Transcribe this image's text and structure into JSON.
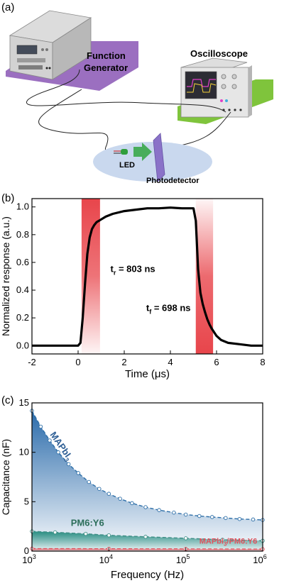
{
  "panel_a": {
    "label": "(a)",
    "function_generator_label_1": "Function",
    "function_generator_label_2": "Generator",
    "oscilloscope_label": "Oscilloscope",
    "led_label": "LED",
    "photodetector_label": "Photodetector",
    "colors": {
      "fg_platform": "#9b6fc0",
      "osc_platform": "#7fc43c",
      "table": "#c9d8ee",
      "detector": "#8a72c8",
      "arrow": "#3aa84a",
      "led": "#2f9e3c"
    }
  },
  "chart_data": [
    {
      "id": "b",
      "panel_label": "(b)",
      "type": "line",
      "xlabel": "Time (μs)",
      "ylabel": "Normalized response (a.u.)",
      "xlim": [
        -2,
        8
      ],
      "ylim": [
        -0.06,
        1.06
      ],
      "x_ticks": [
        -2,
        0,
        2,
        4,
        6,
        8
      ],
      "y_ticks": [
        0.0,
        0.2,
        0.4,
        0.6,
        0.8,
        1.0
      ],
      "y_tick_labels": [
        "0.0",
        "0.2",
        "0.4",
        "0.6",
        "0.8",
        "1.0"
      ],
      "grid": false,
      "series": [
        {
          "color": "#000000",
          "x": [
            -2,
            -1,
            0,
            0.1,
            0.2,
            0.3,
            0.4,
            0.5,
            0.6,
            0.7,
            0.8,
            0.9,
            1.0,
            1.2,
            1.5,
            2.0,
            2.5,
            3.0,
            3.5,
            4.0,
            4.5,
            4.8,
            5.0,
            5.1,
            5.2,
            5.3,
            5.4,
            5.5,
            5.6,
            5.7,
            5.8,
            6.0,
            6.2,
            6.5,
            7.0,
            7.5,
            8.0
          ],
          "y": [
            0.0,
            0.0,
            0.0,
            0.02,
            0.2,
            0.45,
            0.66,
            0.78,
            0.84,
            0.87,
            0.89,
            0.9,
            0.91,
            0.93,
            0.95,
            0.97,
            0.98,
            0.99,
            0.99,
            0.995,
            0.99,
            0.99,
            0.99,
            0.9,
            0.55,
            0.38,
            0.3,
            0.24,
            0.19,
            0.15,
            0.12,
            0.07,
            0.04,
            0.02,
            0.01,
            0.0,
            0.0
          ]
        }
      ],
      "highlight_regions": [
        {
          "x": [
            0.15,
            0.95
          ],
          "color": "#e8454b"
        },
        {
          "x": [
            5.1,
            5.85
          ],
          "color": "#e8454b"
        }
      ],
      "annotations": [
        {
          "name": "rise-time",
          "sym": "t",
          "sub": "r",
          "text": " = 803 ns",
          "x": 1.4,
          "y": 0.53
        },
        {
          "name": "fall-time",
          "sym": "t",
          "sub": "f",
          "text": " = 698 ns",
          "x": 2.95,
          "y": 0.25
        }
      ]
    },
    {
      "id": "c",
      "panel_label": "(c)",
      "type": "line",
      "xlabel": "Frequency (Hz)",
      "ylabel": "Capacitance (nF)",
      "x_scale": "log",
      "xlim": [
        1000,
        1000000
      ],
      "ylim": [
        0,
        15
      ],
      "x_ticks": [
        1000,
        10000,
        100000,
        1000000
      ],
      "x_tick_base": "10",
      "x_tick_exps": [
        "3",
        "4",
        "5",
        "6"
      ],
      "y_ticks": [
        0,
        5,
        10,
        15
      ],
      "y_tick_labels": [
        "0",
        "5",
        "10",
        "15"
      ],
      "grid": false,
      "series": [
        {
          "name": "MAPbI3",
          "label_main": "MAPbI",
          "label_sub": "3",
          "color": "#2e6fa8",
          "fill_top": "#1f63a6",
          "label_color": "#2e5f95",
          "x": [
            1000,
            1300,
            1700,
            2200,
            3000,
            4000,
            5500,
            7500,
            10000,
            14000,
            20000,
            30000,
            45000,
            70000,
            100000,
            150000,
            220000,
            330000,
            500000,
            750000,
            1000000
          ],
          "y": [
            14.2,
            12.6,
            11.2,
            10.0,
            8.8,
            7.9,
            7.0,
            6.3,
            5.8,
            5.3,
            4.85,
            4.45,
            4.15,
            3.9,
            3.7,
            3.55,
            3.45,
            3.35,
            3.25,
            3.2,
            3.15
          ]
        },
        {
          "name": "PM6:Y6",
          "label_main": "PM6:Y6",
          "label_sub": "",
          "color": "#3e8e86",
          "fill_top": "#1f8a7c",
          "label_color": "#2c6e5a",
          "x": [
            1000,
            2000,
            5000,
            10000,
            30000,
            100000,
            300000,
            1000000
          ],
          "y": [
            2.0,
            1.9,
            1.75,
            1.6,
            1.45,
            1.3,
            1.15,
            1.05
          ]
        },
        {
          "name": "MAPbI3/PM6:Y6",
          "label_main": "MAPbI",
          "label_sub": "3",
          "label_tail": "/PM6:Y6",
          "color": "#e0525c",
          "fill_top": "#e0525c",
          "label_color": "#e0525c",
          "x": [
            1000,
            10000,
            100000,
            1000000
          ],
          "y": [
            0.25,
            0.24,
            0.22,
            0.2
          ]
        }
      ]
    }
  ]
}
